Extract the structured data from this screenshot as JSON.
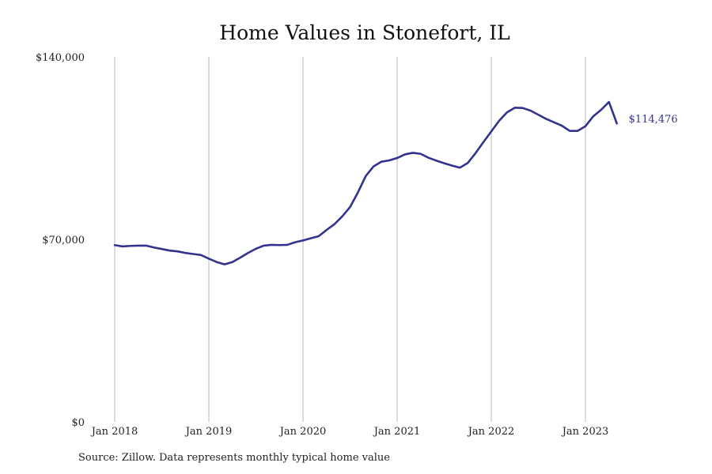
{
  "title": "Home Values in Stonefort, IL",
  "source": "Source: Zillow. Data represents monthly typical home value",
  "colors": {
    "line": "#33338f",
    "grid": "#bbbbbb",
    "text": "#222222"
  },
  "chart_data": {
    "type": "line",
    "title": "Home Values in Stonefort, IL",
    "xlabel": "",
    "ylabel": "",
    "ylim": [
      0,
      140000
    ],
    "yticks": [
      0,
      70000,
      140000
    ],
    "ytick_labels": [
      "$0",
      "$70,000",
      "$140,000"
    ],
    "xticks": [
      "2018-01",
      "2019-01",
      "2020-01",
      "2021-01",
      "2022-01",
      "2023-01"
    ],
    "xtick_labels": [
      "Jan 2018",
      "Jan 2019",
      "Jan 2020",
      "Jan 2021",
      "Jan 2022",
      "Jan 2023"
    ],
    "grid": "vertical at x ticks",
    "legend": "none",
    "end_label": "$114,476",
    "series": [
      {
        "x": [
          "2018-01",
          "2018-02",
          "2018-03",
          "2018-04",
          "2018-05",
          "2018-06",
          "2018-07",
          "2018-08",
          "2018-09",
          "2018-10",
          "2018-11",
          "2018-12",
          "2019-01",
          "2019-02",
          "2019-03",
          "2019-04",
          "2019-05",
          "2019-06",
          "2019-07",
          "2019-08",
          "2019-09",
          "2019-10",
          "2019-11",
          "2019-12",
          "2020-01",
          "2020-02",
          "2020-03",
          "2020-04",
          "2020-05",
          "2020-06",
          "2020-07",
          "2020-08",
          "2020-09",
          "2020-10",
          "2020-11",
          "2020-12",
          "2021-01",
          "2021-02",
          "2021-03",
          "2021-04",
          "2021-05",
          "2021-06",
          "2021-07",
          "2021-08",
          "2021-09",
          "2021-10",
          "2021-11",
          "2021-12",
          "2022-01",
          "2022-02",
          "2022-03",
          "2022-04",
          "2022-05",
          "2022-06",
          "2022-07",
          "2022-08",
          "2022-09",
          "2022-10",
          "2022-11",
          "2022-12",
          "2023-01",
          "2023-02",
          "2023-03",
          "2023-04",
          "2023-05"
        ],
        "values": [
          67800,
          67300,
          67500,
          67600,
          67600,
          66900,
          66300,
          65700,
          65400,
          64800,
          64400,
          64000,
          62600,
          61300,
          60400,
          61300,
          63000,
          64800,
          66400,
          67600,
          67900,
          67800,
          67900,
          68900,
          69600,
          70400,
          71200,
          73600,
          75800,
          78800,
          82400,
          88000,
          94300,
          98000,
          99800,
          100300,
          101200,
          102600,
          103200,
          102800,
          101300,
          100200,
          99200,
          98300,
          97500,
          99300,
          103100,
          107300,
          111400,
          115500,
          118700,
          120500,
          120400,
          119400,
          117800,
          116200,
          114900,
          113600,
          111600,
          111600,
          113400,
          117200,
          119700,
          122700,
          114476
        ]
      }
    ]
  }
}
